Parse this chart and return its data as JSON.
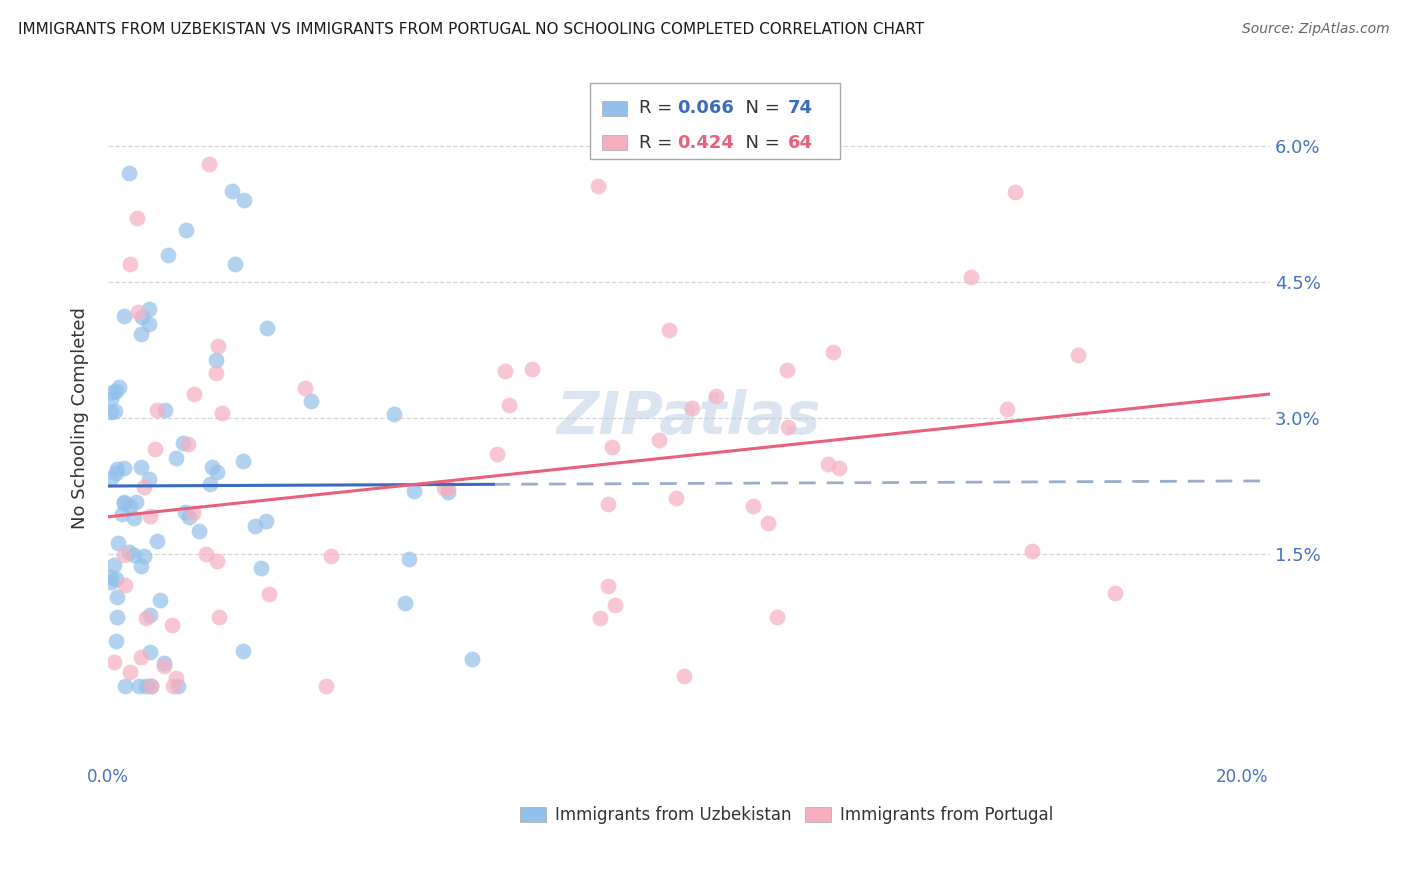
{
  "title": "IMMIGRANTS FROM UZBEKISTAN VS IMMIGRANTS FROM PORTUGAL NO SCHOOLING COMPLETED CORRELATION CHART",
  "source": "Source: ZipAtlas.com",
  "ylabel": "No Schooling Completed",
  "xlim": [
    0.0,
    0.205
  ],
  "ylim": [
    -0.008,
    0.068
  ],
  "yticks": [
    0.015,
    0.03,
    0.045,
    0.06
  ],
  "ytick_labels": [
    "1.5%",
    "3.0%",
    "4.5%",
    "6.0%"
  ],
  "xticks": [
    0.0,
    0.04,
    0.08,
    0.12,
    0.16,
    0.2
  ],
  "xtick_labels_show": {
    "0.0": "0.0%",
    "0.20": "20.0%"
  },
  "legend1_r": "0.066",
  "legend1_n": "74",
  "legend2_r": "0.424",
  "legend2_n": "64",
  "blue_scatter_color": "#92c0ea",
  "pink_scatter_color": "#f5afc0",
  "blue_line_color": "#3a6bbf",
  "pink_line_color": "#e8607a",
  "dashed_line_color": "#9aaccc",
  "background": "#ffffff",
  "grid_color": "#cccccc",
  "title_color": "#1a1a1a",
  "axis_label_color": "#4472c4",
  "watermark": "ZIPatlas",
  "watermark_color": "#b8cce4",
  "watermark_alpha": 0.5,
  "seed_uz": 42,
  "seed_pt": 123
}
